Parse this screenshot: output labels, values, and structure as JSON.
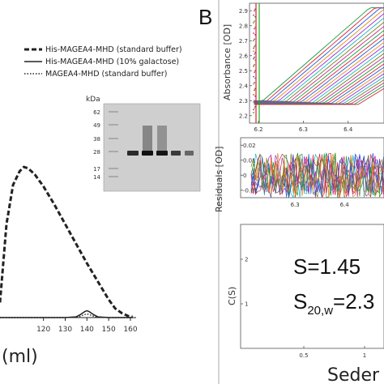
{
  "panel_a": {
    "legend": [
      {
        "label": "His-MAGEA4-MHD (standard buffer)",
        "style": "dashed-thick"
      },
      {
        "label": "His-MAGEA4-MHD (10% galactose)",
        "style": "solid"
      },
      {
        "label": "MAGEA4-MHD (standard buffer)",
        "style": "dotted"
      }
    ],
    "xlabel_fragment": "(ml)",
    "gel": {
      "unit_label": "kDa",
      "markers": [
        "62",
        "49",
        "38",
        "28",
        "17",
        "14"
      ]
    }
  },
  "panel_b": {
    "letter": "B",
    "absorbance": {
      "ylabel": "Absorbance [OD]",
      "yticks": [
        "2.9",
        "2.8",
        "2.7",
        "2.6",
        "2.5",
        "2.4",
        "2.3",
        "2.2"
      ],
      "xticks": [
        "6.2",
        "6.3",
        "6.4"
      ]
    },
    "residuals": {
      "ylabel": "Residuals [OD]",
      "yticks": [
        "0.02",
        "0.01",
        "0",
        "-0.01"
      ],
      "xticks": [
        "6.3",
        "6.4"
      ]
    },
    "cs": {
      "ylabel": "C(S)",
      "yticks": [
        "2",
        "1"
      ],
      "xticks": [
        "0.5",
        "1"
      ],
      "s_text": "S=1.45",
      "s20_main": "S",
      "s20_sub": "20,w",
      "s20_rest": "=2.3"
    },
    "xlabel_fragment": "Seder"
  },
  "chart_data": [
    {
      "type": "line",
      "title": "",
      "xlabel": "(ml)",
      "ylabel": "",
      "xticks": [
        120,
        130,
        140,
        150,
        160
      ],
      "xlim": [
        100,
        162
      ],
      "series": [
        {
          "name": "His-MAGEA4-MHD (standard buffer)",
          "x": [
            100,
            103,
            106,
            109,
            111,
            113,
            116,
            120,
            125,
            130,
            135,
            140,
            145,
            150,
            153,
            156,
            159,
            161
          ],
          "y": [
            0.1,
            0.62,
            0.88,
            0.97,
            1.0,
            0.99,
            0.95,
            0.87,
            0.75,
            0.62,
            0.49,
            0.36,
            0.24,
            0.12,
            0.06,
            0.03,
            0.01,
            0.005
          ]
        },
        {
          "name": "His-MAGEA4-MHD (10% galactose)",
          "x": [
            100,
            130,
            135,
            137,
            139,
            140,
            141,
            143,
            145,
            150,
            161
          ],
          "y": [
            0,
            0,
            0.005,
            0.02,
            0.04,
            0.045,
            0.04,
            0.02,
            0.005,
            0,
            0
          ]
        },
        {
          "name": "MAGEA4-MHD (standard buffer)",
          "x": [
            100,
            130,
            136,
            138,
            140,
            142,
            144,
            150,
            161
          ],
          "y": [
            0,
            0,
            0.004,
            0.015,
            0.025,
            0.015,
            0.004,
            0,
            0
          ]
        }
      ]
    },
    {
      "type": "scatter",
      "title": "",
      "ylabel": "Absorbance [OD]",
      "yticks": [
        2.2,
        2.3,
        2.4,
        2.5,
        2.6,
        2.7,
        2.8,
        2.9
      ],
      "xticks": [
        6.2,
        6.3,
        6.4
      ],
      "ylim": [
        2.15,
        2.95
      ],
      "xlim": [
        6.18,
        6.48
      ]
    },
    {
      "type": "scatter",
      "title": "",
      "ylabel": "Residuals [OD]",
      "yticks": [
        -0.01,
        0,
        0.01,
        0.02
      ],
      "xticks": [
        6.3,
        6.4
      ],
      "ylim": [
        -0.015,
        0.025
      ]
    },
    {
      "type": "line",
      "title": "",
      "ylabel": "C(S)",
      "yticks": [
        1,
        2
      ],
      "xticks": [
        0.5,
        1
      ]
    }
  ]
}
